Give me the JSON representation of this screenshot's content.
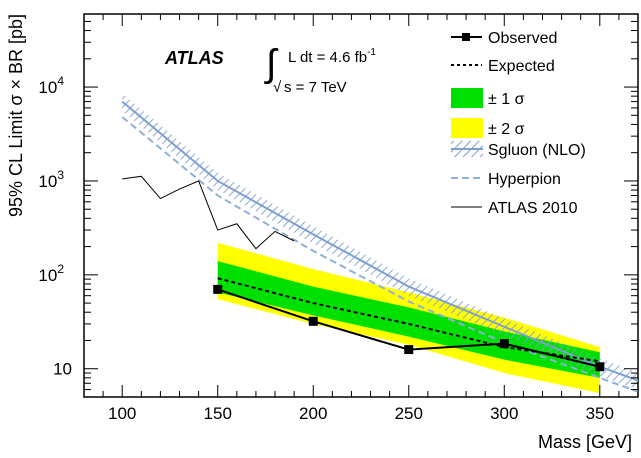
{
  "chart_data": {
    "type": "line",
    "title": "",
    "xlabel": "Mass [GeV]",
    "ylabel": "95% CL Limit σ × BR [pb]",
    "xlim": [
      80,
      370
    ],
    "ylim": [
      5,
      60000
    ],
    "y_scale": "log",
    "x_ticks": [
      "100",
      "150",
      "200",
      "250",
      "300",
      "350"
    ],
    "y_ticks": [
      {
        "value": 10,
        "base": "10",
        "exp": ""
      },
      {
        "value": 100,
        "base": "10",
        "exp": "2"
      },
      {
        "value": 1000,
        "base": "10",
        "exp": "3"
      },
      {
        "value": 10000,
        "base": "10",
        "exp": "4"
      }
    ],
    "annotations": {
      "experiment": "ATLAS",
      "lumi_prefix": "L dt = 4.6 fb",
      "lumi_exp": "-1",
      "energy": "s = 7 TeV"
    },
    "legend_position": "top-right",
    "series": [
      {
        "name": "Observed",
        "style": "solid-markers",
        "color": "#000000",
        "x": [
          150,
          200,
          250,
          300,
          350
        ],
        "y": [
          70,
          32,
          16,
          18.5,
          10.5
        ]
      },
      {
        "name": "Expected",
        "style": "dashed",
        "color": "#000000",
        "x": [
          150,
          200,
          250,
          300,
          350
        ],
        "y": [
          92,
          50,
          30,
          17,
          12
        ]
      },
      {
        "name": "± 1 σ",
        "style": "band",
        "color": "#00e000",
        "x": [
          150,
          200,
          250,
          300,
          350
        ],
        "lower": [
          65,
          37,
          22,
          12.5,
          8
        ],
        "upper": [
          140,
          75,
          45,
          25,
          15
        ]
      },
      {
        "name": "± 2 σ",
        "style": "band",
        "color": "#ffff00",
        "x": [
          150,
          200,
          250,
          300,
          350
        ],
        "lower": [
          55,
          30,
          18,
          9,
          5.5
        ],
        "upper": [
          220,
          115,
          65,
          35,
          17
        ]
      },
      {
        "name": "Sgluon (NLO)",
        "style": "hatched-band",
        "color": "#7f9fd0",
        "x": [
          100,
          150,
          200,
          250,
          300,
          350,
          370
        ],
        "y": [
          7000,
          1000,
          270,
          75,
          28,
          10.5,
          7.5
        ]
      },
      {
        "name": "Hyperpion",
        "style": "dashed",
        "color": "#8fb0d8",
        "x": [
          100,
          150,
          200,
          250,
          300,
          350,
          370
        ],
        "y": [
          4800,
          700,
          180,
          52,
          19,
          8,
          5.7
        ]
      },
      {
        "name": "ATLAS 2010",
        "style": "thin-solid",
        "color": "#000000",
        "x": [
          100,
          110,
          120,
          130,
          140,
          150,
          160,
          170,
          180,
          190
        ],
        "y": [
          1050,
          1120,
          650,
          820,
          1000,
          300,
          350,
          190,
          290,
          230
        ]
      }
    ]
  }
}
